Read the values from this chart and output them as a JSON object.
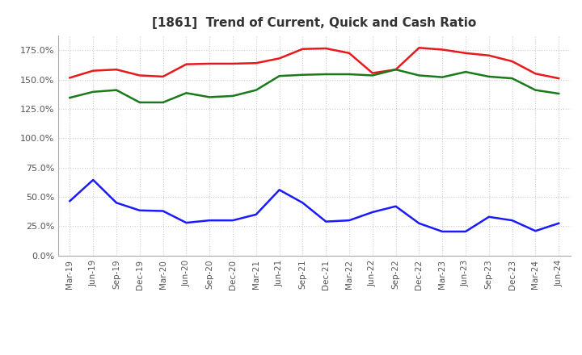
{
  "title": "[1861]  Trend of Current, Quick and Cash Ratio",
  "x_labels": [
    "Mar-19",
    "Jun-19",
    "Sep-19",
    "Dec-19",
    "Mar-20",
    "Jun-20",
    "Sep-20",
    "Dec-20",
    "Mar-21",
    "Jun-21",
    "Sep-21",
    "Dec-21",
    "Mar-22",
    "Jun-22",
    "Sep-22",
    "Dec-22",
    "Mar-23",
    "Jun-23",
    "Sep-23",
    "Dec-23",
    "Mar-24",
    "Jun-24"
  ],
  "current_ratio": [
    151.5,
    157.5,
    158.5,
    153.5,
    152.5,
    163.0,
    163.5,
    163.5,
    164.0,
    168.0,
    176.0,
    176.5,
    172.5,
    155.5,
    158.5,
    177.0,
    175.5,
    172.5,
    170.5,
    165.5,
    155.0,
    151.0
  ],
  "quick_ratio": [
    134.5,
    139.5,
    141.0,
    130.5,
    130.5,
    138.5,
    135.0,
    136.0,
    141.0,
    153.0,
    154.0,
    154.5,
    154.5,
    153.5,
    158.5,
    153.5,
    152.0,
    156.5,
    152.5,
    151.0,
    141.0,
    138.0
  ],
  "cash_ratio": [
    46.5,
    64.5,
    45.0,
    38.5,
    38.0,
    28.0,
    30.0,
    30.0,
    35.0,
    56.0,
    45.0,
    29.0,
    30.0,
    37.0,
    42.0,
    27.5,
    20.5,
    20.5,
    33.0,
    30.0,
    21.0,
    27.5
  ],
  "current_color": "#e8191a",
  "quick_color": "#1a7a1a",
  "cash_color": "#1a1aff",
  "bg_color": "#ffffff",
  "grid_color": "#cccccc",
  "ylim": [
    0,
    187.5
  ],
  "yticks": [
    0,
    25,
    50,
    75,
    100,
    125,
    150,
    175
  ],
  "ytick_labels": [
    "0.0%",
    "25.0%",
    "50.0%",
    "75.0%",
    "100.0%",
    "125.0%",
    "150.0%",
    "175.0%"
  ],
  "title_color": "#333333",
  "tick_color": "#555555"
}
